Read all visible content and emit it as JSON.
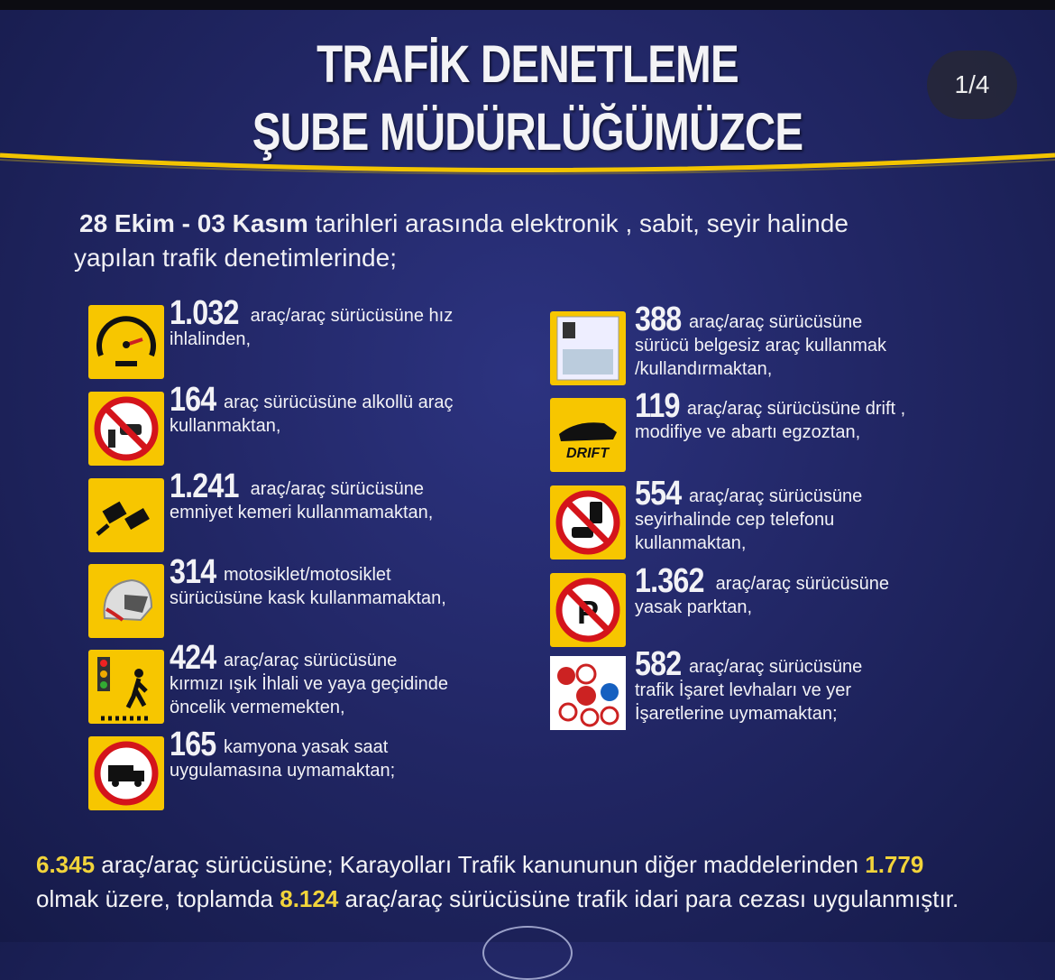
{
  "header": {
    "title_line1": "TRAFİK DENETLEME",
    "title_line2": "ŞUBE MÜDÜRLÜĞÜMÜZCE",
    "page_indicator": "1/4"
  },
  "intro": {
    "date_start": "28 Ekim",
    "date_sep": " - ",
    "date_end": "03 Kasım",
    "line1_rest": "  tarihleri arasında elektronik , sabit, seyir halinde",
    "line2": "yapılan trafik denetimlerinde;"
  },
  "colors": {
    "icon_bg": "#f7c600",
    "highlight": "#f2d43a",
    "background": "#222766"
  },
  "left_items": [
    {
      "icon": "speedometer-icon",
      "number": "1.032",
      "first": "araç/araç sürücüsüne hız",
      "lines": [
        "ihlalinden,"
      ]
    },
    {
      "icon": "no-alcohol-icon",
      "number": "164",
      "first": "araç sürücüsüne alkollü araç",
      "lines": [
        "kullanmaktan,"
      ]
    },
    {
      "icon": "seatbelt-icon",
      "number": "1.241",
      "first": "araç/araç sürücüsüne",
      "lines": [
        "emniyet kemeri kullanmamaktan,"
      ]
    },
    {
      "icon": "helmet-icon",
      "number": "314",
      "first": "motosiklet/motosiklet",
      "lines": [
        "sürücüsüne kask kullanmamaktan,"
      ]
    },
    {
      "icon": "traffic-light-pedestrian-icon",
      "number": "424",
      "first": "araç/araç sürücüsüne",
      "lines": [
        "kırmızı ışık İhlali ve yaya geçidinde",
        "öncelik vermemekten,"
      ]
    },
    {
      "icon": "no-truck-icon",
      "number": "165",
      "first": "kamyona yasak saat",
      "lines": [
        "uygulamasına  uymamaktan;"
      ]
    }
  ],
  "right_items": [
    {
      "icon": "driver-license-icon",
      "number": "388",
      "first": "araç/araç  sürücüsüne",
      "lines": [
        "sürücü belgesiz araç kullanmak",
        "/kullandırmaktan,"
      ]
    },
    {
      "icon": "drift-car-icon",
      "icon_label": "DRIFT",
      "number": "119",
      "first": "araç/araç  sürücüsüne drift ,",
      "lines": [
        "modifiye ve abartı egzoztan,"
      ]
    },
    {
      "icon": "no-phone-icon",
      "number": "554",
      "first": "araç/araç  sürücüsüne",
      "lines": [
        "seyirhalinde cep telefonu",
        "kullanmaktan,"
      ]
    },
    {
      "icon": "no-parking-icon",
      "number": "1.362",
      "first": "araç/araç sürücüsüne",
      "lines": [
        "yasak parktan,"
      ]
    },
    {
      "icon": "traffic-signs-icon",
      "number": "582",
      "first": "araç/araç  sürücüsüne",
      "lines": [
        "trafik İşaret levhaları ve yer",
        "İşaretlerine uymamaktan;"
      ]
    }
  ],
  "summary": {
    "n1": "6.345",
    "t1": " araç/araç sürücüsüne; Karayolları Trafik kanununun diğer maddelerinden ",
    "n2": "1.779",
    "t2": "olmak üzere, toplamda ",
    "n3": "8.124",
    "t3": " araç/araç sürücüsüne trafik idari para cezası uygulanmıştır."
  }
}
